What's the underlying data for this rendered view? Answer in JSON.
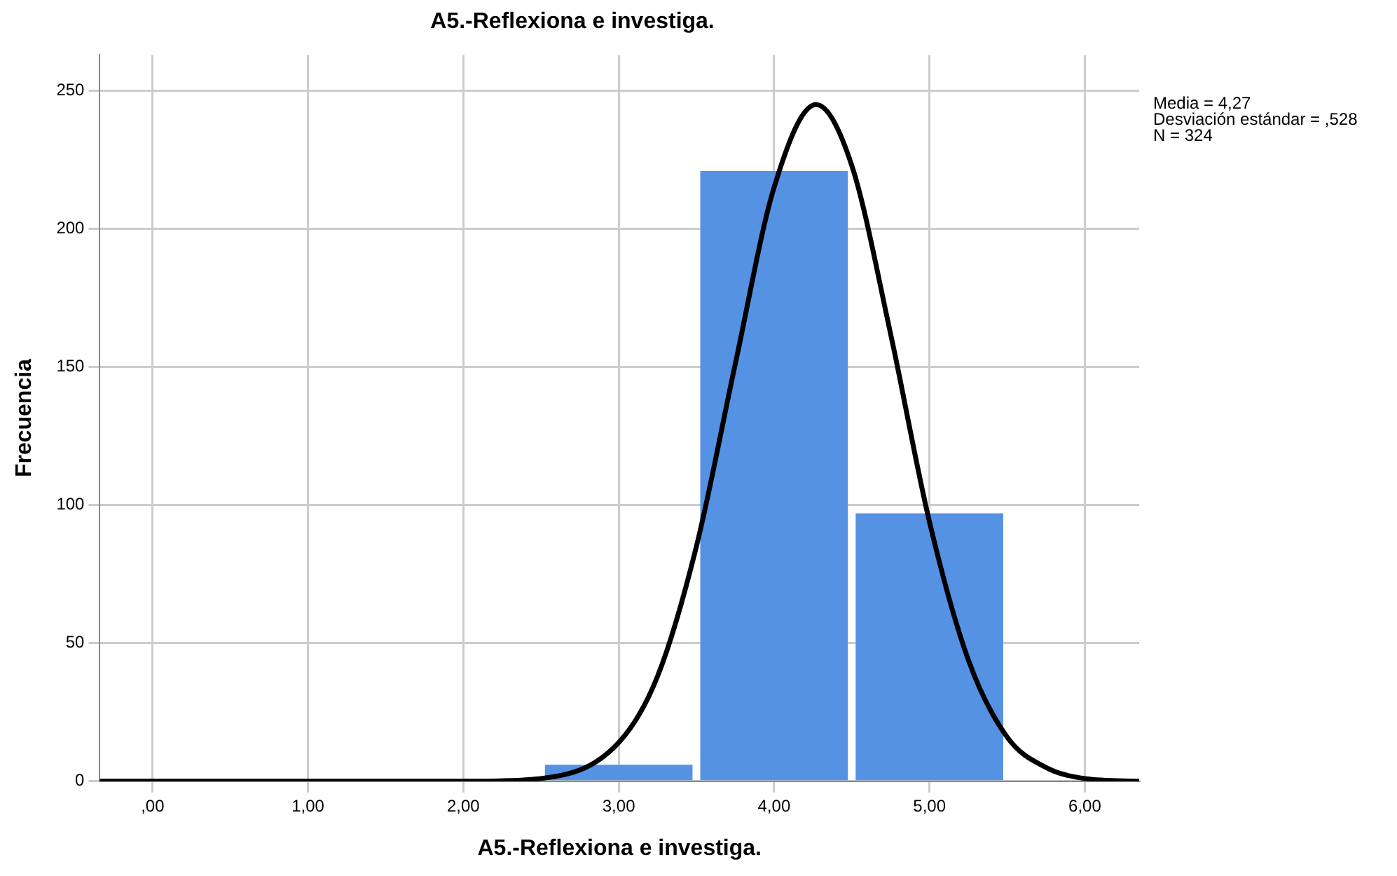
{
  "chart_data": {
    "type": "histogram",
    "title": "A5.-Reflexiona e investiga.",
    "xlabel": "A5.-Reflexiona e investiga.",
    "ylabel": "Frecuencia",
    "bins": [
      2.5,
      3.5,
      4.5,
      5.5
    ],
    "values": [
      6,
      221,
      97
    ],
    "color": "#5592e4",
    "series": [
      {
        "type": "line",
        "color": "#000000",
        "x": [
          -0.34,
          1.0,
          2.0,
          2.5,
          3.0,
          3.25,
          3.5,
          3.75,
          4.0,
          4.27,
          4.5,
          4.75,
          5.0,
          5.25,
          5.5,
          5.75,
          6.0,
          6.35
        ],
        "values": [
          0,
          0,
          0,
          1,
          14,
          38,
          85,
          151,
          215,
          245,
          223,
          162,
          94,
          44,
          16,
          5,
          1,
          0
        ]
      }
    ],
    "xlim": [
      -0.34,
      6.35
    ],
    "xticks": [
      {
        "value": 0,
        "label": ",00"
      },
      {
        "value": 1,
        "label": "1,00"
      },
      {
        "value": 2,
        "label": "2,00"
      },
      {
        "value": 3,
        "label": "3,00"
      },
      {
        "value": 4,
        "label": "4,00"
      },
      {
        "value": 5,
        "label": "5,00"
      },
      {
        "value": 6,
        "label": "6,00"
      }
    ],
    "ylim": [
      0,
      263
    ],
    "yticks": [
      0,
      50,
      100,
      150,
      200,
      250
    ],
    "grid": true,
    "legend": false,
    "annotations": [
      "Media = 4,27",
      "Desviación estándar = ,528",
      "N = 324"
    ]
  }
}
